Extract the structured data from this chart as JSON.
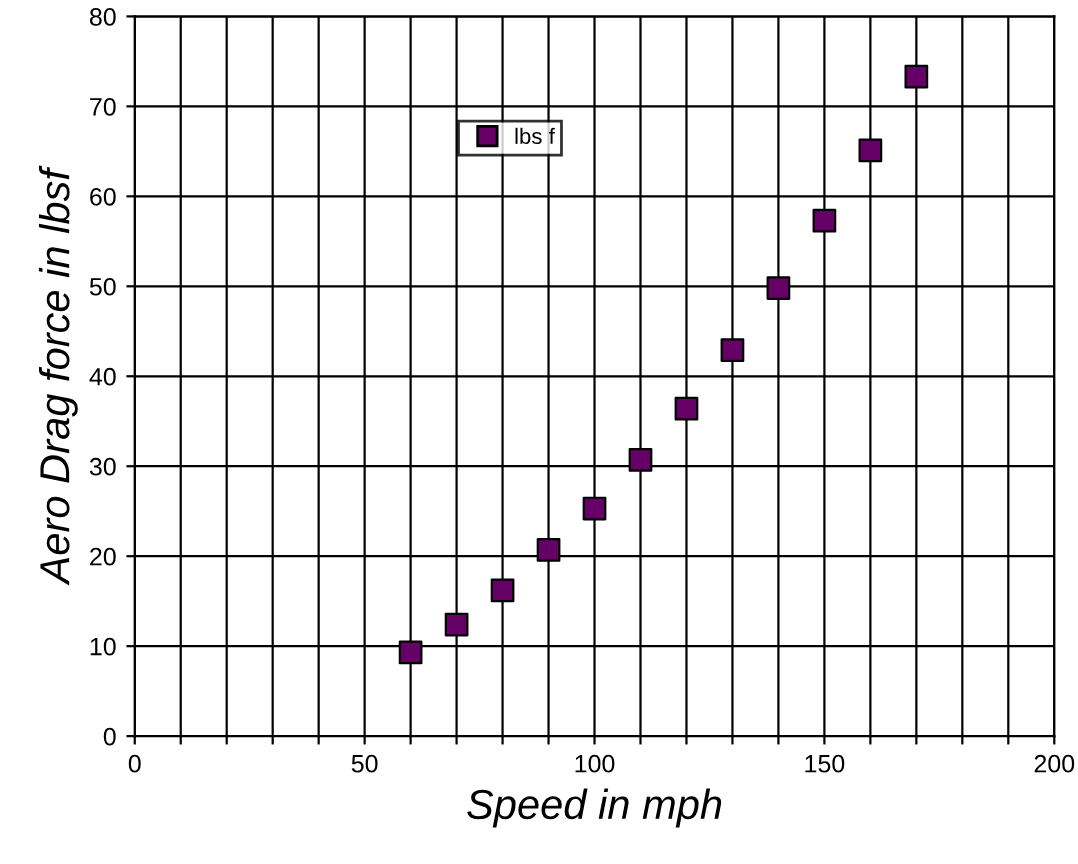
{
  "chart_data": {
    "type": "scatter",
    "xlabel": "Speed in mph",
    "ylabel": "Aero Drag force in lbsf",
    "x": [
      60,
      70,
      80,
      90,
      100,
      110,
      120,
      130,
      140,
      150,
      160,
      170
    ],
    "series": [
      {
        "name": "lbs f",
        "color": "#660066",
        "values": [
          9.3,
          12.4,
          16.2,
          20.7,
          25.3,
          30.7,
          36.4,
          42.9,
          49.8,
          57.3,
          65.1,
          73.3
        ]
      }
    ],
    "xlim": [
      0,
      200
    ],
    "xticks": [
      0,
      {
        "value": 10,
        "label": null
      },
      {
        "value": 20,
        "label": null
      },
      {
        "value": 30,
        "label": null
      },
      {
        "value": 40,
        "label": null
      },
      50,
      {
        "value": 60,
        "label": null
      },
      {
        "value": 70,
        "label": null
      },
      {
        "value": 80,
        "label": null
      },
      {
        "value": 90,
        "label": null
      },
      100,
      {
        "value": 110,
        "label": null
      },
      {
        "value": 120,
        "label": null
      },
      {
        "value": 130,
        "label": null
      },
      {
        "value": 140,
        "label": null
      },
      150,
      {
        "value": 160,
        "label": null
      },
      {
        "value": 170,
        "label": null
      },
      {
        "value": 180,
        "label": null
      },
      {
        "value": 190,
        "label": null
      },
      200
    ],
    "ylim": [
      0,
      80
    ],
    "yticks": [
      0,
      10,
      20,
      30,
      40,
      50,
      60,
      70,
      80
    ],
    "grid": true,
    "legend": "top left",
    "marker": "square"
  }
}
